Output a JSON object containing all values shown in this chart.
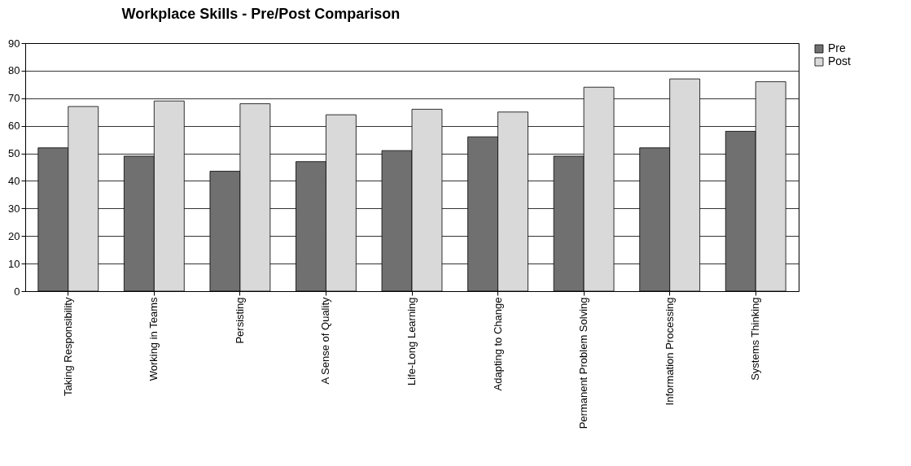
{
  "chart_data": {
    "type": "bar",
    "title": "Workplace Skills - Pre/Post Comparison",
    "categories": [
      "Taking Responsibility",
      "Working in Teams",
      "Persisting",
      "A Sense of Quality",
      "Life-Long Learning",
      "Adapting to Change",
      "Permanent Problem Solving",
      "Information Processing",
      "Systems Thinking"
    ],
    "series": [
      {
        "name": "Pre",
        "color": "#707070",
        "values": [
          52,
          49,
          43.5,
          47,
          51,
          56,
          49,
          52,
          58
        ]
      },
      {
        "name": "Post",
        "color": "#d9d9d9",
        "values": [
          67,
          69,
          68,
          64,
          66,
          65,
          74,
          77,
          76
        ]
      }
    ],
    "ylim": [
      0,
      90
    ],
    "yticks": [
      0,
      10,
      20,
      30,
      40,
      50,
      60,
      70,
      80,
      90
    ],
    "grid": "y",
    "legend": "right"
  }
}
